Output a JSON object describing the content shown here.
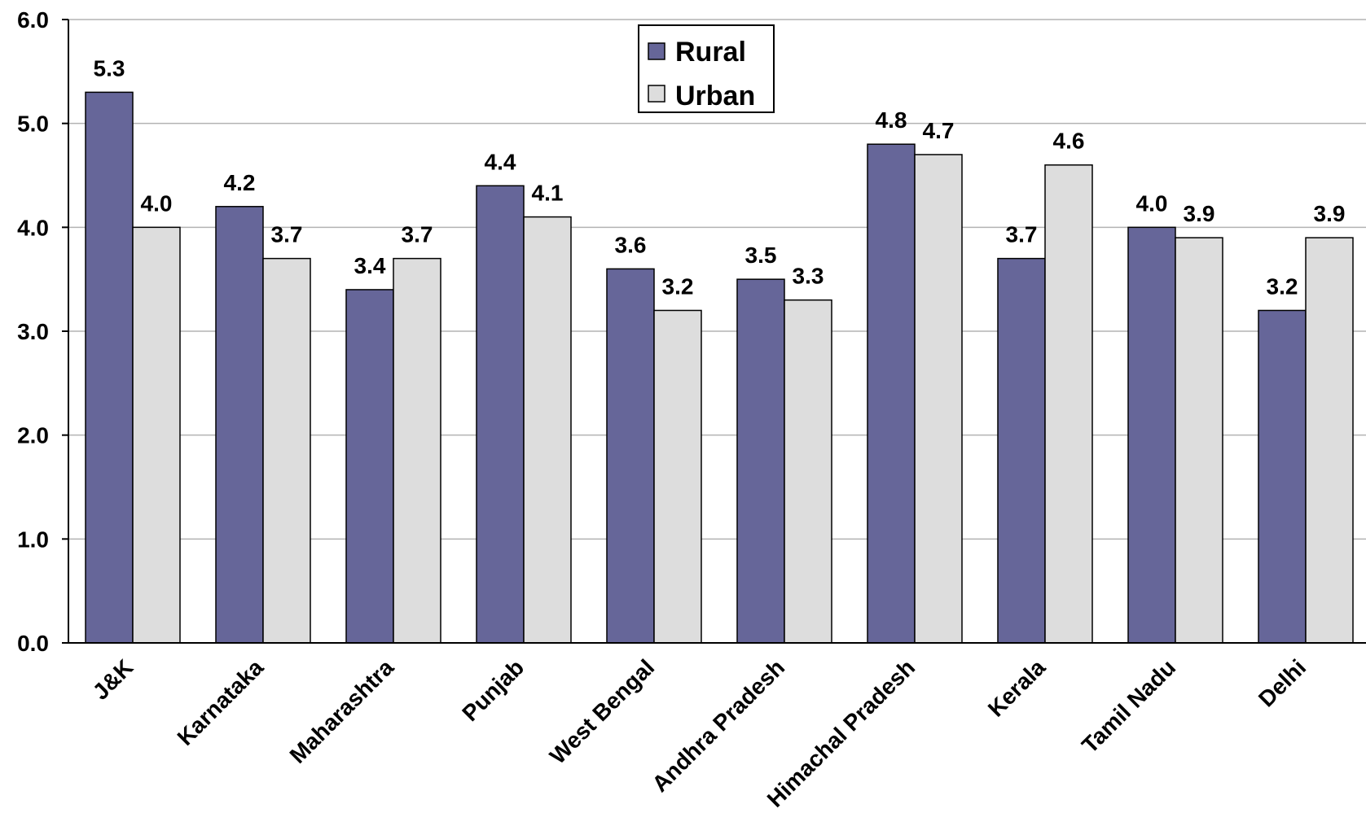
{
  "chart_data": {
    "type": "bar",
    "categories": [
      "J&K",
      "Karnataka",
      "Maharashtra",
      "Punjab",
      "West Bengal",
      "Andhra Pradesh",
      "Himachal Pradesh",
      "Kerala",
      "Tamil Nadu",
      "Delhi"
    ],
    "series": [
      {
        "name": "Rural",
        "color": "#666699",
        "values": [
          5.3,
          4.2,
          3.4,
          4.4,
          3.6,
          3.5,
          4.8,
          3.7,
          4.0,
          3.2
        ],
        "labels": [
          "5.3",
          "4.2",
          "3.4",
          "4.4",
          "3.6",
          "3.5",
          "4.8",
          "3.7",
          "4.0",
          "3.2"
        ]
      },
      {
        "name": "Urban",
        "color": "#dddddd",
        "values": [
          4.0,
          3.7,
          3.7,
          4.1,
          3.2,
          3.3,
          4.7,
          4.6,
          3.9,
          3.9
        ],
        "labels": [
          "4.0",
          "3.7",
          "3.7",
          "4.1",
          "3.2",
          "3.3",
          "4.7",
          "4.6",
          "3.9",
          "3.9"
        ]
      }
    ],
    "ylim": [
      0,
      6
    ],
    "yticks": [
      "0.0",
      "1.0",
      "2.0",
      "3.0",
      "4.0",
      "5.0",
      "6.0"
    ],
    "grid": true,
    "legend_position": "top-center"
  }
}
